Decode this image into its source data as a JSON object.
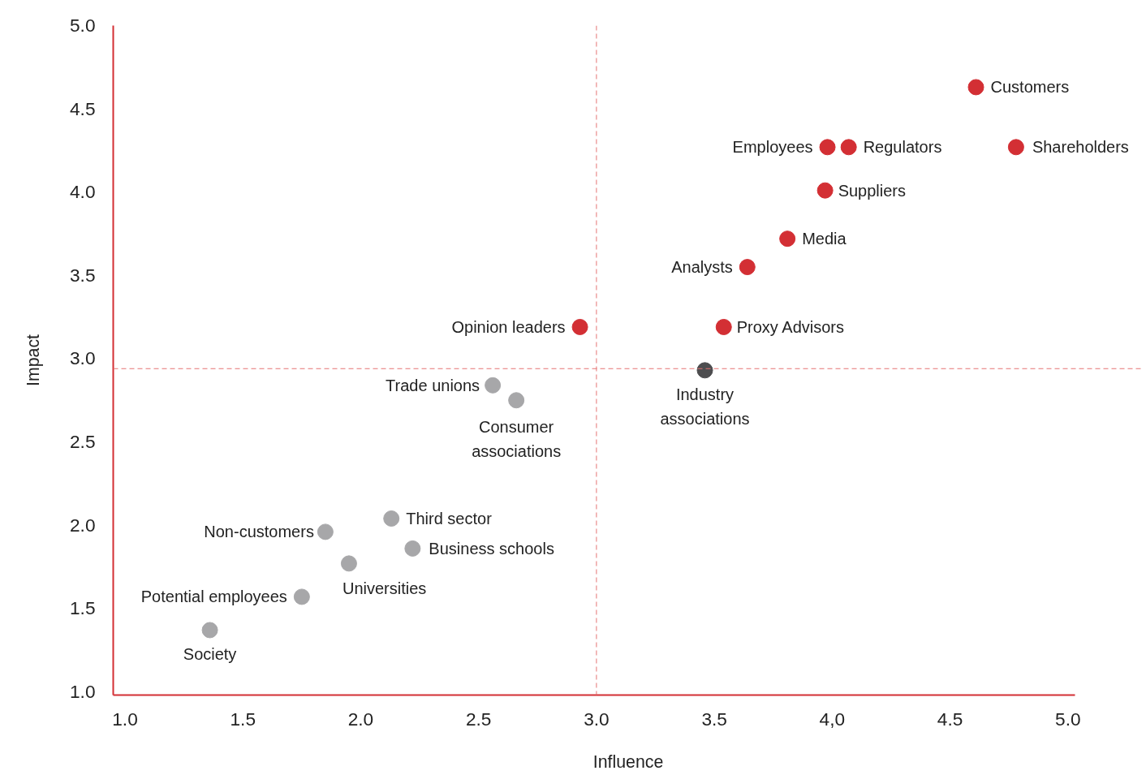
{
  "chart_data": {
    "type": "scatter",
    "xlabel": "Influence",
    "ylabel": "Impact",
    "xlim": [
      0.95,
      5.03
    ],
    "ylim": [
      0.98,
      5.0
    ],
    "xticks": [
      {
        "value": 1.0,
        "label": "1.0"
      },
      {
        "value": 1.5,
        "label": "1.5"
      },
      {
        "value": 2.0,
        "label": "2.0"
      },
      {
        "value": 2.5,
        "label": "2.5"
      },
      {
        "value": 3.0,
        "label": "3.0"
      },
      {
        "value": 3.5,
        "label": "3.5"
      },
      {
        "value": 4.0,
        "label": "4,0"
      },
      {
        "value": 4.5,
        "label": "4.5"
      },
      {
        "value": 5.0,
        "label": "5.0"
      }
    ],
    "yticks": [
      {
        "value": 1.0,
        "label": "1.0"
      },
      {
        "value": 1.5,
        "label": "1.5"
      },
      {
        "value": 2.0,
        "label": "2.0"
      },
      {
        "value": 2.5,
        "label": "2.5"
      },
      {
        "value": 3.0,
        "label": "3.0"
      },
      {
        "value": 3.5,
        "label": "3.5"
      },
      {
        "value": 4.0,
        "label": "4.0"
      },
      {
        "value": 4.5,
        "label": "4.5"
      },
      {
        "value": 5.0,
        "label": "5.0"
      }
    ],
    "marker": "circle",
    "grid": false,
    "series": [
      {
        "color": "#d32f34",
        "x": [
          4.61,
          4.78,
          3.98,
          4.07,
          3.97,
          3.81,
          3.64,
          3.54,
          2.93
        ],
        "values": [
          4.63,
          4.27,
          4.27,
          4.27,
          4.01,
          3.72,
          3.55,
          3.19,
          3.19
        ]
      },
      {
        "color": "#4d4d4f",
        "x": [
          3.46
        ],
        "values": [
          2.93
        ]
      },
      {
        "color": "#a7a7a9",
        "x": [
          2.56,
          2.66,
          2.13,
          2.22,
          1.85,
          1.95,
          1.75,
          1.36
        ],
        "values": [
          2.84,
          2.75,
          2.04,
          1.86,
          1.96,
          1.77,
          1.57,
          1.37
        ]
      }
    ],
    "ref_lines": [
      {
        "axis": "x",
        "value": 3.0,
        "color": "#e57373",
        "line_style": "dashed"
      },
      {
        "axis": "y",
        "value": 2.94,
        "color": "#e57373",
        "line_style": "dashed"
      }
    ],
    "annotations": [
      {
        "text": "Customers",
        "x": 4.61,
        "y": 4.63
      },
      {
        "text": "Shareholders",
        "x": 4.78,
        "y": 4.27
      },
      {
        "text": "Employees",
        "x": 3.98,
        "y": 4.27
      },
      {
        "text": "Regulators",
        "x": 4.07,
        "y": 4.27
      },
      {
        "text": "Suppliers",
        "x": 3.97,
        "y": 4.01
      },
      {
        "text": "Media",
        "x": 3.81,
        "y": 3.72
      },
      {
        "text": "Analysts",
        "x": 3.64,
        "y": 3.55
      },
      {
        "text": "Proxy Advisors",
        "x": 3.54,
        "y": 3.19
      },
      {
        "text": "Opinion leaders",
        "x": 2.93,
        "y": 3.19
      },
      {
        "text": "Industry\nassociations",
        "x": 3.46,
        "y": 2.93
      },
      {
        "text": "Trade unions",
        "x": 2.56,
        "y": 2.84
      },
      {
        "text": "Consumer\nassociations",
        "x": 2.66,
        "y": 2.75
      },
      {
        "text": "Third sector",
        "x": 2.13,
        "y": 2.04
      },
      {
        "text": "Business schools",
        "x": 2.22,
        "y": 1.86
      },
      {
        "text": "Non-customers",
        "x": 1.85,
        "y": 1.96
      },
      {
        "text": "Universities",
        "x": 1.95,
        "y": 1.77
      },
      {
        "text": "Potential employees",
        "x": 1.75,
        "y": 1.57
      },
      {
        "text": "Society",
        "x": 1.36,
        "y": 1.37
      }
    ]
  }
}
